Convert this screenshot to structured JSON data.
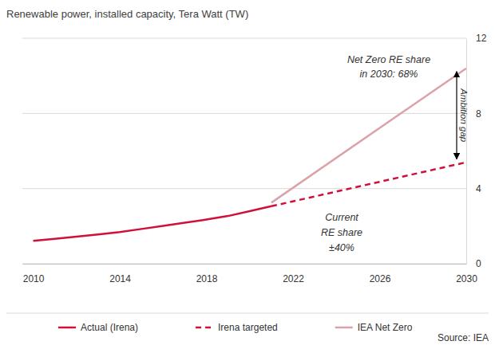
{
  "chart_data": {
    "type": "line",
    "title": "Renewable power, installed capacity, Tera Watt (TW)",
    "xlim": [
      2009.5,
      2030
    ],
    "xticks": [
      2010,
      2014,
      2018,
      2022,
      2026,
      2030
    ],
    "ylim": [
      0,
      12
    ],
    "yticks": [
      0,
      4,
      8,
      12
    ],
    "grid": true,
    "legend": "bottom",
    "series": [
      {
        "name": "Actual (Irena)",
        "color": "#d0103a",
        "line_style": "solid",
        "x": [
          2010,
          2011,
          2012,
          2013,
          2014,
          2015,
          2016,
          2017,
          2018,
          2019,
          2020,
          2021
        ],
        "values": [
          1.22,
          1.33,
          1.44,
          1.56,
          1.69,
          1.85,
          2.01,
          2.18,
          2.35,
          2.54,
          2.8,
          3.06
        ]
      },
      {
        "name": "Irena targeted",
        "color": "#d0103a",
        "line_style": "dashed",
        "x": [
          2021,
          2030
        ],
        "values": [
          3.06,
          5.4
        ]
      },
      {
        "name": "IEA Net Zero",
        "color": "#dba3a9",
        "line_style": "solid",
        "x": [
          2021,
          2030
        ],
        "values": [
          3.25,
          10.4
        ]
      }
    ],
    "annotations": [
      {
        "text": [
          "Net Zero RE share",
          "in 2030: 68%"
        ]
      },
      {
        "text": [
          "Ambition gap"
        ]
      },
      {
        "text": [
          "Current",
          "RE share",
          "±40%"
        ]
      }
    ],
    "source": "Source: IEA"
  }
}
